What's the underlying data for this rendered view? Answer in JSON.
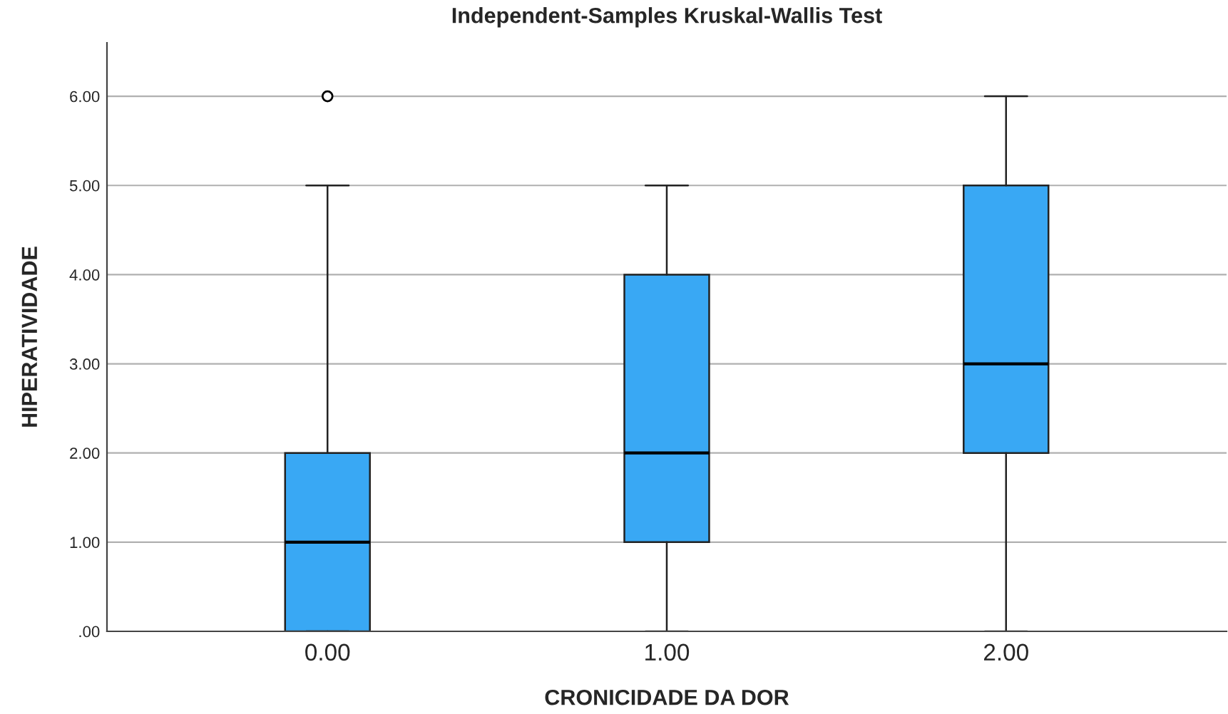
{
  "chart_data": {
    "type": "box",
    "title": "Independent-Samples Kruskal-Wallis Test",
    "xlabel": "CRONICIDADE DA DOR",
    "ylabel": "HIPERATIVIDADE",
    "categories": [
      "0.00",
      "1.00",
      "2.00"
    ],
    "boxes": [
      {
        "low": 0,
        "q1": 0,
        "median": 1,
        "q3": 2,
        "high": 5,
        "outliers": [
          6
        ]
      },
      {
        "low": 0,
        "q1": 1,
        "median": 2,
        "q3": 4,
        "high": 5
      },
      {
        "low": 0,
        "q1": 2,
        "median": 3,
        "q3": 5,
        "high": 6
      }
    ],
    "color": "#39a8f4",
    "ylim": [
      0,
      6.6
    ],
    "yticks": [
      {
        "value": 0,
        "label": ".00"
      },
      {
        "value": 1,
        "label": "1.00"
      },
      {
        "value": 2,
        "label": "2.00"
      },
      {
        "value": 3,
        "label": "3.00"
      },
      {
        "value": 4,
        "label": "4.00"
      },
      {
        "value": 5,
        "label": "5.00"
      },
      {
        "value": 6,
        "label": "6.00"
      }
    ],
    "grid": "y"
  }
}
